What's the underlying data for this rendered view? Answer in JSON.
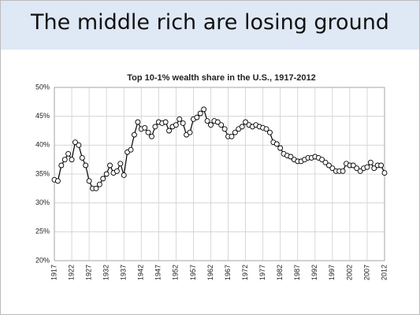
{
  "header": {
    "title": "The middle rich are losing ground"
  },
  "chart_data": {
    "type": "line",
    "title": "Top 10-1% wealth share in the U.S., 1917-2012",
    "x": [
      1917,
      1918,
      1919,
      1920,
      1921,
      1922,
      1923,
      1924,
      1925,
      1926,
      1927,
      1928,
      1929,
      1930,
      1931,
      1932,
      1933,
      1934,
      1935,
      1936,
      1937,
      1938,
      1939,
      1940,
      1941,
      1942,
      1943,
      1944,
      1945,
      1946,
      1947,
      1948,
      1949,
      1950,
      1951,
      1952,
      1953,
      1954,
      1955,
      1956,
      1957,
      1958,
      1959,
      1960,
      1961,
      1962,
      1963,
      1964,
      1965,
      1966,
      1967,
      1968,
      1969,
      1970,
      1971,
      1972,
      1973,
      1974,
      1975,
      1976,
      1977,
      1978,
      1979,
      1980,
      1981,
      1982,
      1983,
      1984,
      1985,
      1986,
      1987,
      1988,
      1989,
      1990,
      1991,
      1992,
      1993,
      1994,
      1995,
      1996,
      1997,
      1998,
      1999,
      2000,
      2001,
      2002,
      2003,
      2004,
      2005,
      2006,
      2007,
      2008,
      2009,
      2010,
      2011,
      2012
    ],
    "series": [
      {
        "color": "#000000",
        "values": [
          34,
          33.8,
          36.5,
          37.5,
          38.5,
          37.5,
          40.5,
          40,
          37.8,
          36.5,
          33.8,
          32.5,
          32.5,
          33.2,
          34.2,
          35,
          36.5,
          35.2,
          35.5,
          36.8,
          34.8,
          38.8,
          39.2,
          41.8,
          44,
          42.8,
          43,
          42.2,
          41.5,
          43.2,
          44,
          43.8,
          44,
          42.5,
          43.2,
          43.5,
          44.5,
          43.8,
          41.8,
          42.2,
          44.5,
          44.8,
          45.5,
          46.2,
          44.2,
          43.5,
          44.2,
          44,
          43.5,
          42.8,
          41.5,
          41.5,
          42.2,
          42.8,
          43.2,
          44,
          43.5,
          43.2,
          43.5,
          43.2,
          43,
          42.8,
          42.2,
          40.5,
          40.2,
          39.5,
          38.5,
          38.2,
          38,
          37.5,
          37.2,
          37.2,
          37.5,
          37.8,
          37.8,
          38,
          37.8,
          37.5,
          37,
          36.5,
          36,
          35.5,
          35.5,
          35.5,
          36.8,
          36.5,
          36.5,
          36,
          35.5,
          36,
          36.2,
          37,
          36,
          36.5,
          36.5,
          35.2
        ]
      }
    ],
    "xlim": [
      1917,
      2012
    ],
    "xticks": [
      1917,
      1922,
      1927,
      1932,
      1937,
      1942,
      1947,
      1952,
      1957,
      1962,
      1967,
      1972,
      1977,
      1982,
      1987,
      1992,
      1997,
      2002,
      2007,
      2012
    ],
    "ylim": [
      20,
      50
    ],
    "yticks": [
      {
        "value": 20,
        "label": "20%"
      },
      {
        "value": 25,
        "label": "25%"
      },
      {
        "value": 30,
        "label": "30%"
      },
      {
        "value": 35,
        "label": "35%"
      },
      {
        "value": 40,
        "label": "40%"
      },
      {
        "value": 45,
        "label": "45%"
      },
      {
        "value": 50,
        "label": "50%"
      }
    ],
    "grid": true
  }
}
